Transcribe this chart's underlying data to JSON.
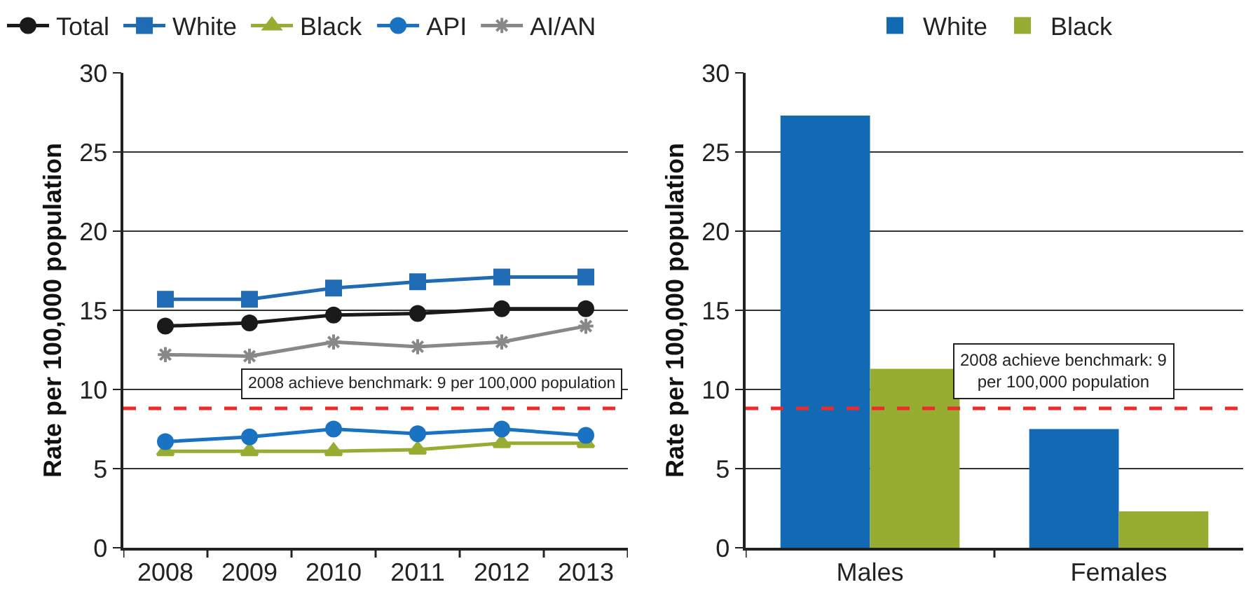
{
  "chart_data": [
    {
      "type": "line",
      "ylabel": "Rate per 100,000 population",
      "categories": [
        "2008",
        "2009",
        "2010",
        "2011",
        "2012",
        "2013"
      ],
      "ylim": [
        0,
        30
      ],
      "yticks": [
        0,
        5,
        10,
        15,
        20,
        25,
        30
      ],
      "grid": "y",
      "legend": "top left",
      "line_style": "solid",
      "series": [
        {
          "name": "Total",
          "color": "#1a1a1a",
          "marker": "circle",
          "values": [
            14.0,
            14.2,
            14.7,
            14.8,
            15.1,
            15.1
          ]
        },
        {
          "name": "White",
          "color": "#1f6cb4",
          "marker": "square",
          "values": [
            15.7,
            15.7,
            16.4,
            16.8,
            17.1,
            17.1
          ]
        },
        {
          "name": "Black",
          "color": "#97ad32",
          "marker": "triangle",
          "values": [
            6.1,
            6.1,
            6.1,
            6.2,
            6.6,
            6.6
          ]
        },
        {
          "name": "API",
          "color": "#1a73c2",
          "marker": "circle",
          "values": [
            6.7,
            7.0,
            7.5,
            7.2,
            7.5,
            7.1
          ]
        },
        {
          "name": "AI/AN",
          "color": "#888888",
          "marker": "cross",
          "values": [
            12.2,
            12.1,
            13.0,
            12.7,
            13.0,
            14.0
          ]
        }
      ],
      "ref_lines": [
        {
          "axis": "y",
          "value": 8.8,
          "label": "2008 achieve benchmark: 9 per 100,000 population",
          "color": "#ee2a2a",
          "line_style": "dashed"
        }
      ]
    },
    {
      "type": "bar",
      "ylabel": "Rate per 100,000 population",
      "categories": [
        "Males",
        "Females"
      ],
      "ylim": [
        0,
        30
      ],
      "yticks": [
        0,
        5,
        10,
        15,
        20,
        25,
        30
      ],
      "grid": "y",
      "legend": "top",
      "series": [
        {
          "name": "White",
          "color": "#126ab4",
          "values": [
            27.3,
            7.5
          ]
        },
        {
          "name": "Black",
          "color": "#97ad32",
          "values": [
            11.3,
            2.3
          ]
        }
      ],
      "ref_lines": [
        {
          "axis": "y",
          "value": 8.8,
          "label": "2008 achieve benchmark: 9\nper 100,000 population",
          "color": "#ee2a2a",
          "line_style": "dashed"
        }
      ]
    }
  ]
}
